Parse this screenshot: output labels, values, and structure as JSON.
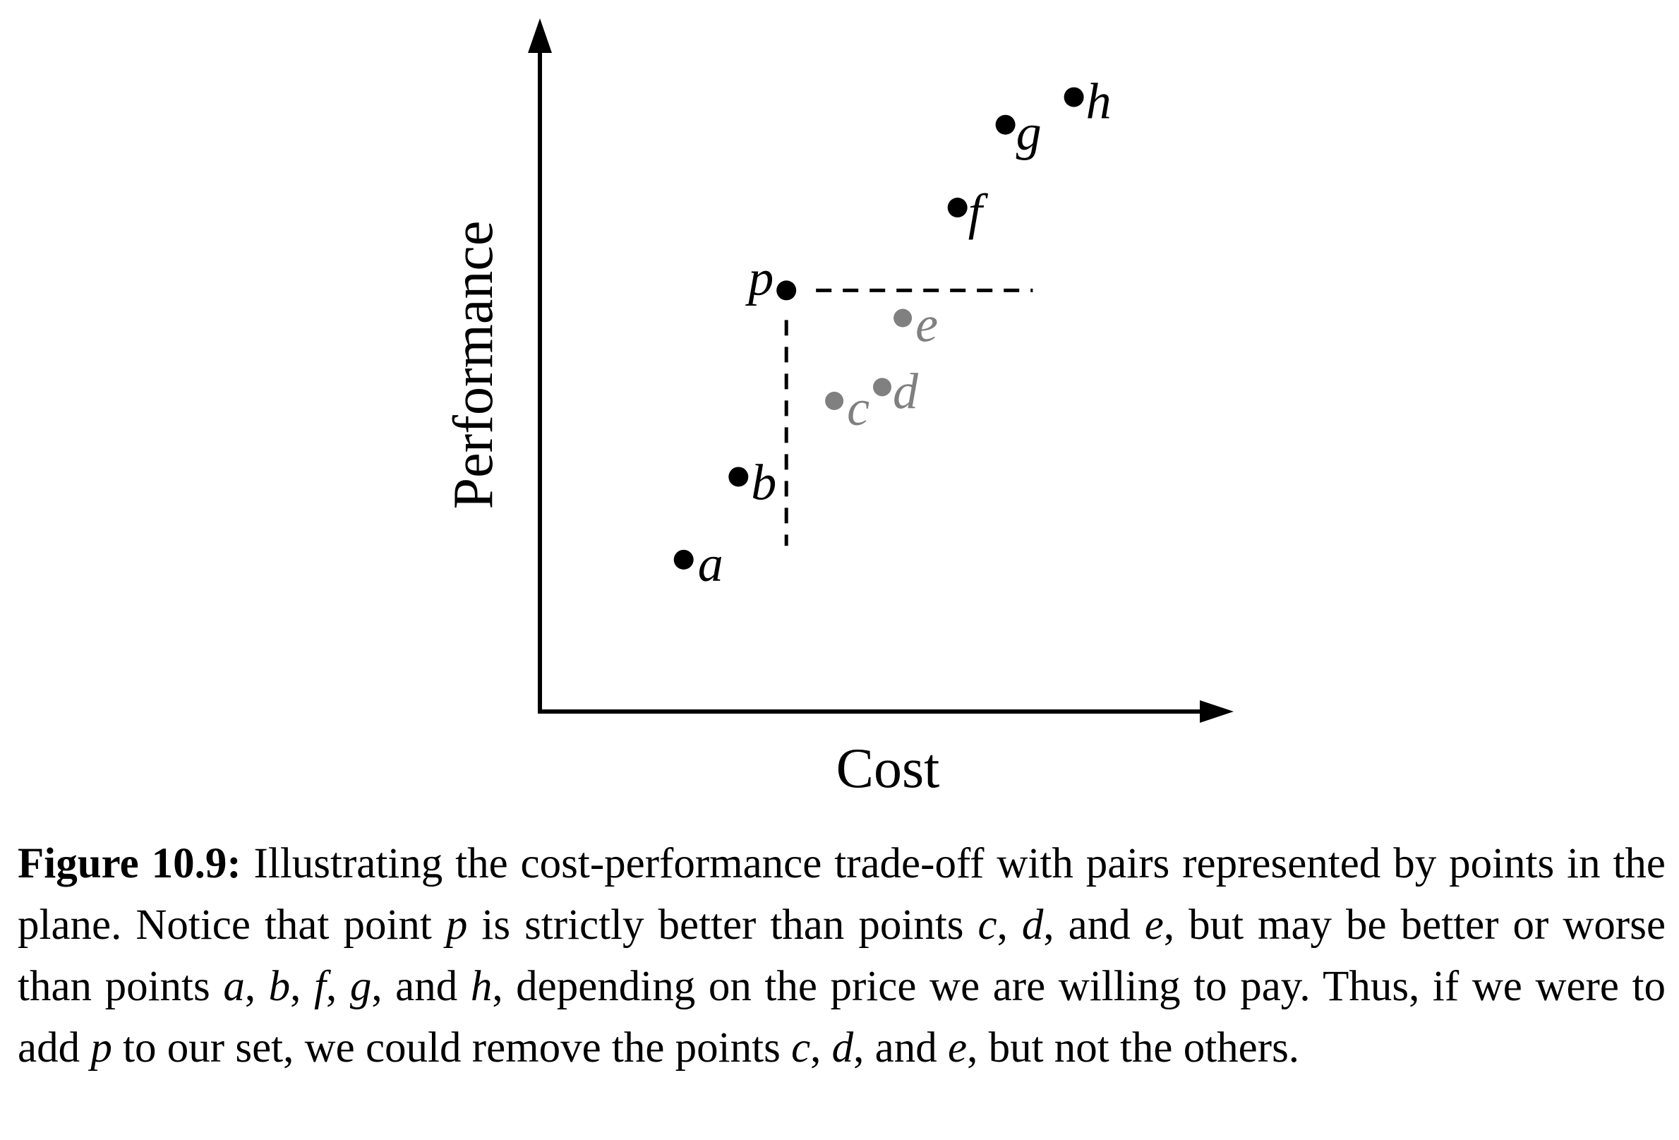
{
  "chart_data": {
    "type": "scatter",
    "xlabel": "Cost",
    "ylabel": "Performance",
    "grid": false,
    "xlim": [
      0,
      10
    ],
    "ylim": [
      0,
      10
    ],
    "colors": {
      "dominant": "#000000",
      "dominated": "#808080"
    },
    "points": [
      {
        "label": "a",
        "x": 2.1,
        "y": 2.2,
        "group": "dominant"
      },
      {
        "label": "b",
        "x": 2.9,
        "y": 3.4,
        "group": "dominant"
      },
      {
        "label": "c",
        "x": 4.3,
        "y": 4.5,
        "group": "dominated"
      },
      {
        "label": "d",
        "x": 5.0,
        "y": 4.7,
        "group": "dominated"
      },
      {
        "label": "e",
        "x": 5.3,
        "y": 5.7,
        "group": "dominated"
      },
      {
        "label": "p",
        "x": 3.6,
        "y": 6.1,
        "group": "dominant"
      },
      {
        "label": "f",
        "x": 6.1,
        "y": 7.3,
        "group": "dominant"
      },
      {
        "label": "g",
        "x": 6.8,
        "y": 8.5,
        "group": "dominant"
      },
      {
        "label": "h",
        "x": 7.8,
        "y": 8.9,
        "group": "dominant"
      }
    ],
    "dashed_guides": [
      {
        "from": [
          3.6,
          6.1
        ],
        "to": [
          7.2,
          6.1
        ]
      },
      {
        "from": [
          3.6,
          6.1
        ],
        "to": [
          3.6,
          2.4
        ]
      }
    ]
  },
  "caption": {
    "label": "Figure 10.9:",
    "segments": [
      {
        "t": " Illustrating the cost-performance trade-off with pairs represented by points in the plane. Notice that point ",
        "i": false
      },
      {
        "t": "p",
        "i": true
      },
      {
        "t": " is strictly better than points ",
        "i": false
      },
      {
        "t": "c",
        "i": true
      },
      {
        "t": ", ",
        "i": false
      },
      {
        "t": "d",
        "i": true
      },
      {
        "t": ", and ",
        "i": false
      },
      {
        "t": "e",
        "i": true
      },
      {
        "t": ", but may be better or worse than points ",
        "i": false
      },
      {
        "t": "a",
        "i": true
      },
      {
        "t": ", ",
        "i": false
      },
      {
        "t": "b",
        "i": true
      },
      {
        "t": ", ",
        "i": false
      },
      {
        "t": "f",
        "i": true
      },
      {
        "t": ", ",
        "i": false
      },
      {
        "t": "g",
        "i": true
      },
      {
        "t": ", and ",
        "i": false
      },
      {
        "t": "h",
        "i": true
      },
      {
        "t": ", depending on the price we are willing to pay. Thus, if we were to add ",
        "i": false
      },
      {
        "t": "p",
        "i": true
      },
      {
        "t": " to our set, we could remove the points ",
        "i": false
      },
      {
        "t": "c",
        "i": true
      },
      {
        "t": ", ",
        "i": false
      },
      {
        "t": "d",
        "i": true
      },
      {
        "t": ", and ",
        "i": false
      },
      {
        "t": "e",
        "i": true
      },
      {
        "t": ", but not the others.",
        "i": false
      }
    ]
  }
}
